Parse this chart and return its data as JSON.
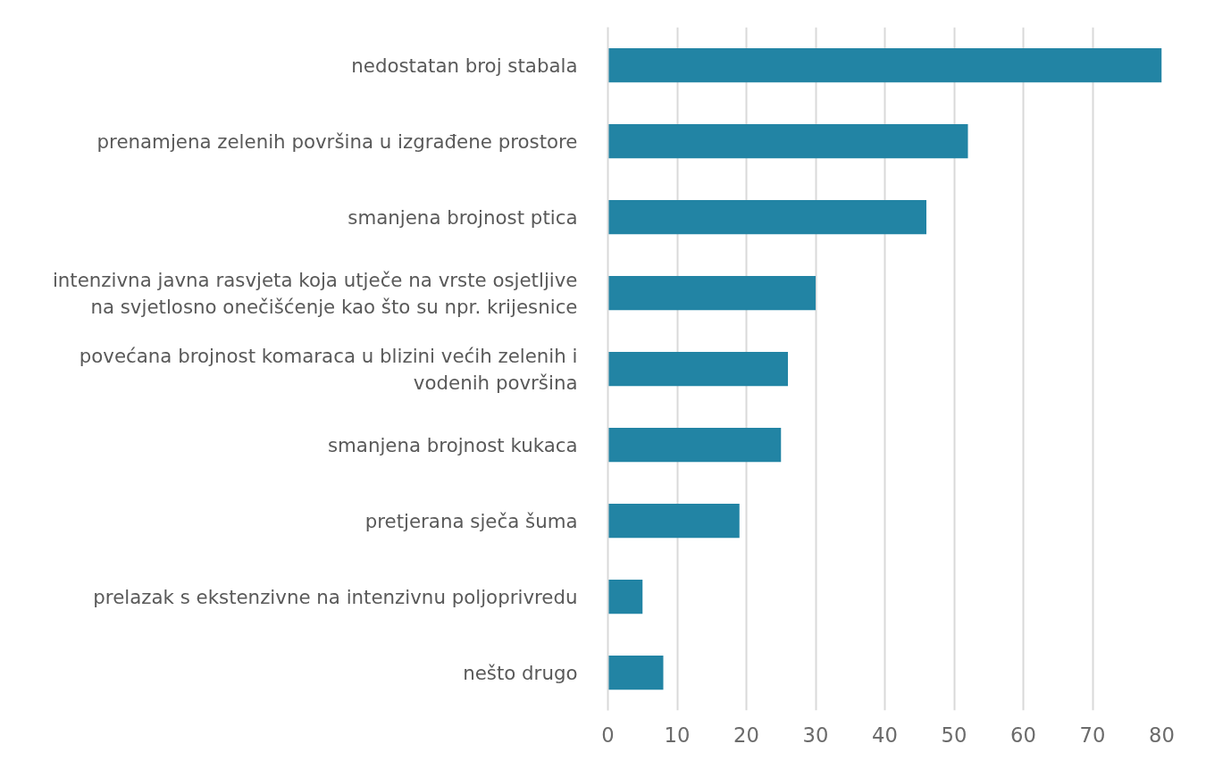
{
  "chart_data": {
    "type": "bar",
    "orientation": "horizontal",
    "categories": [
      "nedostatan broj stabala",
      "prenamjena zelenih površina u izgrađene prostore",
      "smanjena brojnost ptica",
      "intenzivna javna rasvjeta koja utječe na vrste osjetljive na svjetlosno onečišćenje kao što su npr. krijesnice",
      "povećana brojnost komaraca u blizini većih zelenih i vodenih površina",
      "smanjena brojnost kukaca",
      "pretjerana sječa šuma",
      "prelazak s ekstenzivne na intenzivnu poljoprivredu",
      "nešto drugo"
    ],
    "values": [
      80,
      52,
      46,
      30,
      26,
      25,
      19,
      5,
      8
    ],
    "color": "#2284a4",
    "xlim": [
      0,
      80
    ],
    "xticks": [
      0,
      10,
      20,
      30,
      40,
      50,
      60,
      70,
      80
    ],
    "grid": "x"
  }
}
